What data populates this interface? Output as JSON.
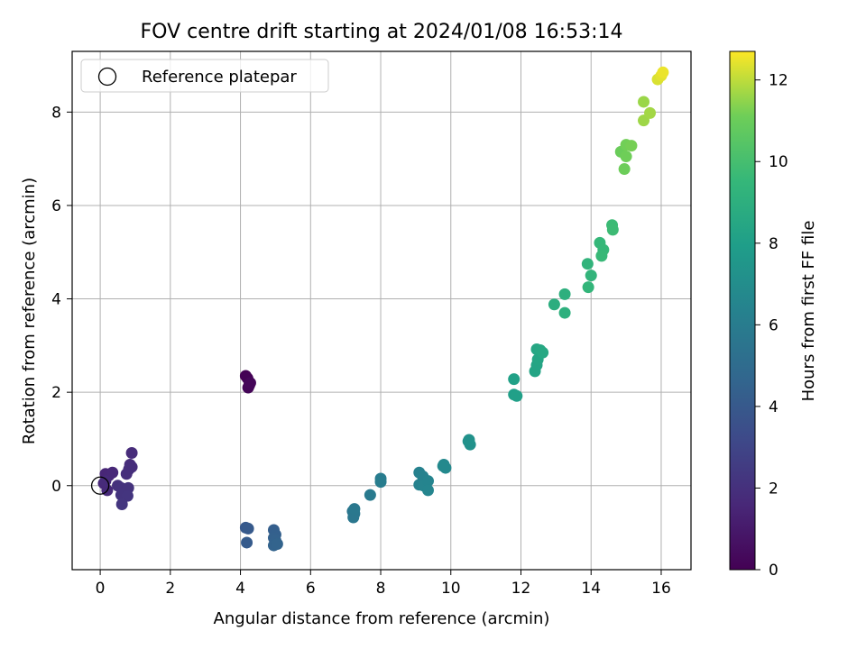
{
  "chart_data": {
    "type": "scatter",
    "title": "FOV centre drift starting at 2024/01/08 16:53:14",
    "xlabel": "Angular distance from reference (arcmin)",
    "ylabel": "Rotation from reference (arcmin)",
    "xlim": [
      -0.8,
      16.85
    ],
    "ylim": [
      -1.8,
      9.3
    ],
    "xticks": [
      0,
      2,
      4,
      6,
      8,
      10,
      12,
      14,
      16
    ],
    "yticks": [
      0,
      2,
      4,
      6,
      8
    ],
    "grid": true,
    "legend": {
      "position": "top-left",
      "entries": [
        "Reference platepar"
      ]
    },
    "reference_point": {
      "x": 0,
      "y": 0,
      "label": "Reference platepar"
    },
    "colorbar": {
      "label": "Hours from first FF file",
      "min": 0,
      "max": 12.7,
      "ticks": [
        0,
        2,
        4,
        6,
        8,
        10,
        12
      ],
      "colormap": "viridis"
    },
    "points": [
      {
        "x": 4.15,
        "y": 2.35,
        "c": 0.0
      },
      {
        "x": 4.2,
        "y": 2.3,
        "c": 0.05
      },
      {
        "x": 4.25,
        "y": 2.15,
        "c": 0.1
      },
      {
        "x": 4.22,
        "y": 2.1,
        "c": 0.15
      },
      {
        "x": 4.28,
        "y": 2.2,
        "c": 0.2
      },
      {
        "x": 0.15,
        "y": 0.25,
        "c": 1.5
      },
      {
        "x": 0.25,
        "y": 0.22,
        "c": 1.55
      },
      {
        "x": 0.35,
        "y": 0.28,
        "c": 1.6
      },
      {
        "x": 0.1,
        "y": 0.05,
        "c": 1.65
      },
      {
        "x": 0.2,
        "y": -0.1,
        "c": 1.7
      },
      {
        "x": 0.15,
        "y": 0.1,
        "c": 1.75
      },
      {
        "x": 0.9,
        "y": 0.7,
        "c": 1.8
      },
      {
        "x": 0.85,
        "y": 0.45,
        "c": 1.82
      },
      {
        "x": 0.9,
        "y": 0.4,
        "c": 1.85
      },
      {
        "x": 0.82,
        "y": 0.35,
        "c": 1.88
      },
      {
        "x": 0.75,
        "y": 0.25,
        "c": 1.9
      },
      {
        "x": 0.5,
        "y": 0.0,
        "c": 2.0
      },
      {
        "x": 0.6,
        "y": -0.05,
        "c": 2.05
      },
      {
        "x": 0.8,
        "y": -0.05,
        "c": 2.1
      },
      {
        "x": 0.6,
        "y": -0.2,
        "c": 2.15
      },
      {
        "x": 0.78,
        "y": -0.22,
        "c": 2.2
      },
      {
        "x": 0.62,
        "y": -0.4,
        "c": 2.25
      },
      {
        "x": 4.15,
        "y": -0.9,
        "c": 4.0
      },
      {
        "x": 4.22,
        "y": -0.92,
        "c": 4.05
      },
      {
        "x": 4.18,
        "y": -1.22,
        "c": 4.1
      },
      {
        "x": 4.95,
        "y": -0.95,
        "c": 4.3
      },
      {
        "x": 5.0,
        "y": -1.05,
        "c": 4.35
      },
      {
        "x": 4.95,
        "y": -1.12,
        "c": 4.4
      },
      {
        "x": 5.0,
        "y": -1.18,
        "c": 4.45
      },
      {
        "x": 4.95,
        "y": -1.28,
        "c": 4.5
      },
      {
        "x": 5.05,
        "y": -1.25,
        "c": 4.55
      },
      {
        "x": 7.2,
        "y": -0.55,
        "c": 5.6
      },
      {
        "x": 7.25,
        "y": -0.6,
        "c": 5.65
      },
      {
        "x": 7.22,
        "y": -0.68,
        "c": 5.7
      },
      {
        "x": 7.25,
        "y": -0.5,
        "c": 5.75
      },
      {
        "x": 7.7,
        "y": -0.2,
        "c": 5.85
      },
      {
        "x": 8.0,
        "y": 0.15,
        "c": 6.0
      },
      {
        "x": 8.0,
        "y": 0.08,
        "c": 6.05
      },
      {
        "x": 9.1,
        "y": 0.28,
        "c": 6.3
      },
      {
        "x": 9.2,
        "y": 0.2,
        "c": 6.32
      },
      {
        "x": 9.1,
        "y": 0.02,
        "c": 6.35
      },
      {
        "x": 9.3,
        "y": 0.05,
        "c": 6.4
      },
      {
        "x": 9.22,
        "y": 0.0,
        "c": 6.45
      },
      {
        "x": 9.35,
        "y": 0.1,
        "c": 6.48
      },
      {
        "x": 9.35,
        "y": -0.1,
        "c": 6.5
      },
      {
        "x": 9.8,
        "y": 0.45,
        "c": 6.7
      },
      {
        "x": 9.85,
        "y": 0.38,
        "c": 6.72
      },
      {
        "x": 9.78,
        "y": 0.42,
        "c": 6.75
      },
      {
        "x": 10.5,
        "y": 0.95,
        "c": 7.2
      },
      {
        "x": 10.55,
        "y": 0.88,
        "c": 7.22
      },
      {
        "x": 10.52,
        "y": 0.98,
        "c": 7.25
      },
      {
        "x": 11.8,
        "y": 2.28,
        "c": 8.1
      },
      {
        "x": 11.8,
        "y": 1.95,
        "c": 8.0
      },
      {
        "x": 11.88,
        "y": 1.92,
        "c": 8.05
      },
      {
        "x": 12.4,
        "y": 2.45,
        "c": 8.3
      },
      {
        "x": 12.45,
        "y": 2.58,
        "c": 8.35
      },
      {
        "x": 12.48,
        "y": 2.7,
        "c": 8.4
      },
      {
        "x": 12.45,
        "y": 2.92,
        "c": 8.45
      },
      {
        "x": 12.55,
        "y": 2.9,
        "c": 8.5
      },
      {
        "x": 12.62,
        "y": 2.85,
        "c": 8.55
      },
      {
        "x": 12.95,
        "y": 3.88,
        "c": 8.9
      },
      {
        "x": 13.25,
        "y": 4.1,
        "c": 9.0
      },
      {
        "x": 13.25,
        "y": 3.7,
        "c": 9.05
      },
      {
        "x": 13.9,
        "y": 4.75,
        "c": 9.3
      },
      {
        "x": 14.0,
        "y": 4.5,
        "c": 9.35
      },
      {
        "x": 13.92,
        "y": 4.25,
        "c": 9.4
      },
      {
        "x": 14.25,
        "y": 5.2,
        "c": 9.5
      },
      {
        "x": 14.35,
        "y": 5.05,
        "c": 9.55
      },
      {
        "x": 14.3,
        "y": 4.92,
        "c": 9.6
      },
      {
        "x": 14.6,
        "y": 5.58,
        "c": 9.7
      },
      {
        "x": 14.62,
        "y": 5.48,
        "c": 9.75
      },
      {
        "x": 14.85,
        "y": 7.15,
        "c": 11.0
      },
      {
        "x": 14.95,
        "y": 6.78,
        "c": 11.05
      },
      {
        "x": 15.0,
        "y": 7.05,
        "c": 11.1
      },
      {
        "x": 15.0,
        "y": 7.3,
        "c": 11.15
      },
      {
        "x": 15.15,
        "y": 7.28,
        "c": 11.2
      },
      {
        "x": 15.5,
        "y": 8.22,
        "c": 11.6
      },
      {
        "x": 15.5,
        "y": 7.82,
        "c": 11.65
      },
      {
        "x": 15.68,
        "y": 7.98,
        "c": 11.7
      },
      {
        "x": 15.9,
        "y": 8.7,
        "c": 12.3
      },
      {
        "x": 16.0,
        "y": 8.78,
        "c": 12.4
      },
      {
        "x": 16.05,
        "y": 8.85,
        "c": 12.5
      }
    ]
  }
}
